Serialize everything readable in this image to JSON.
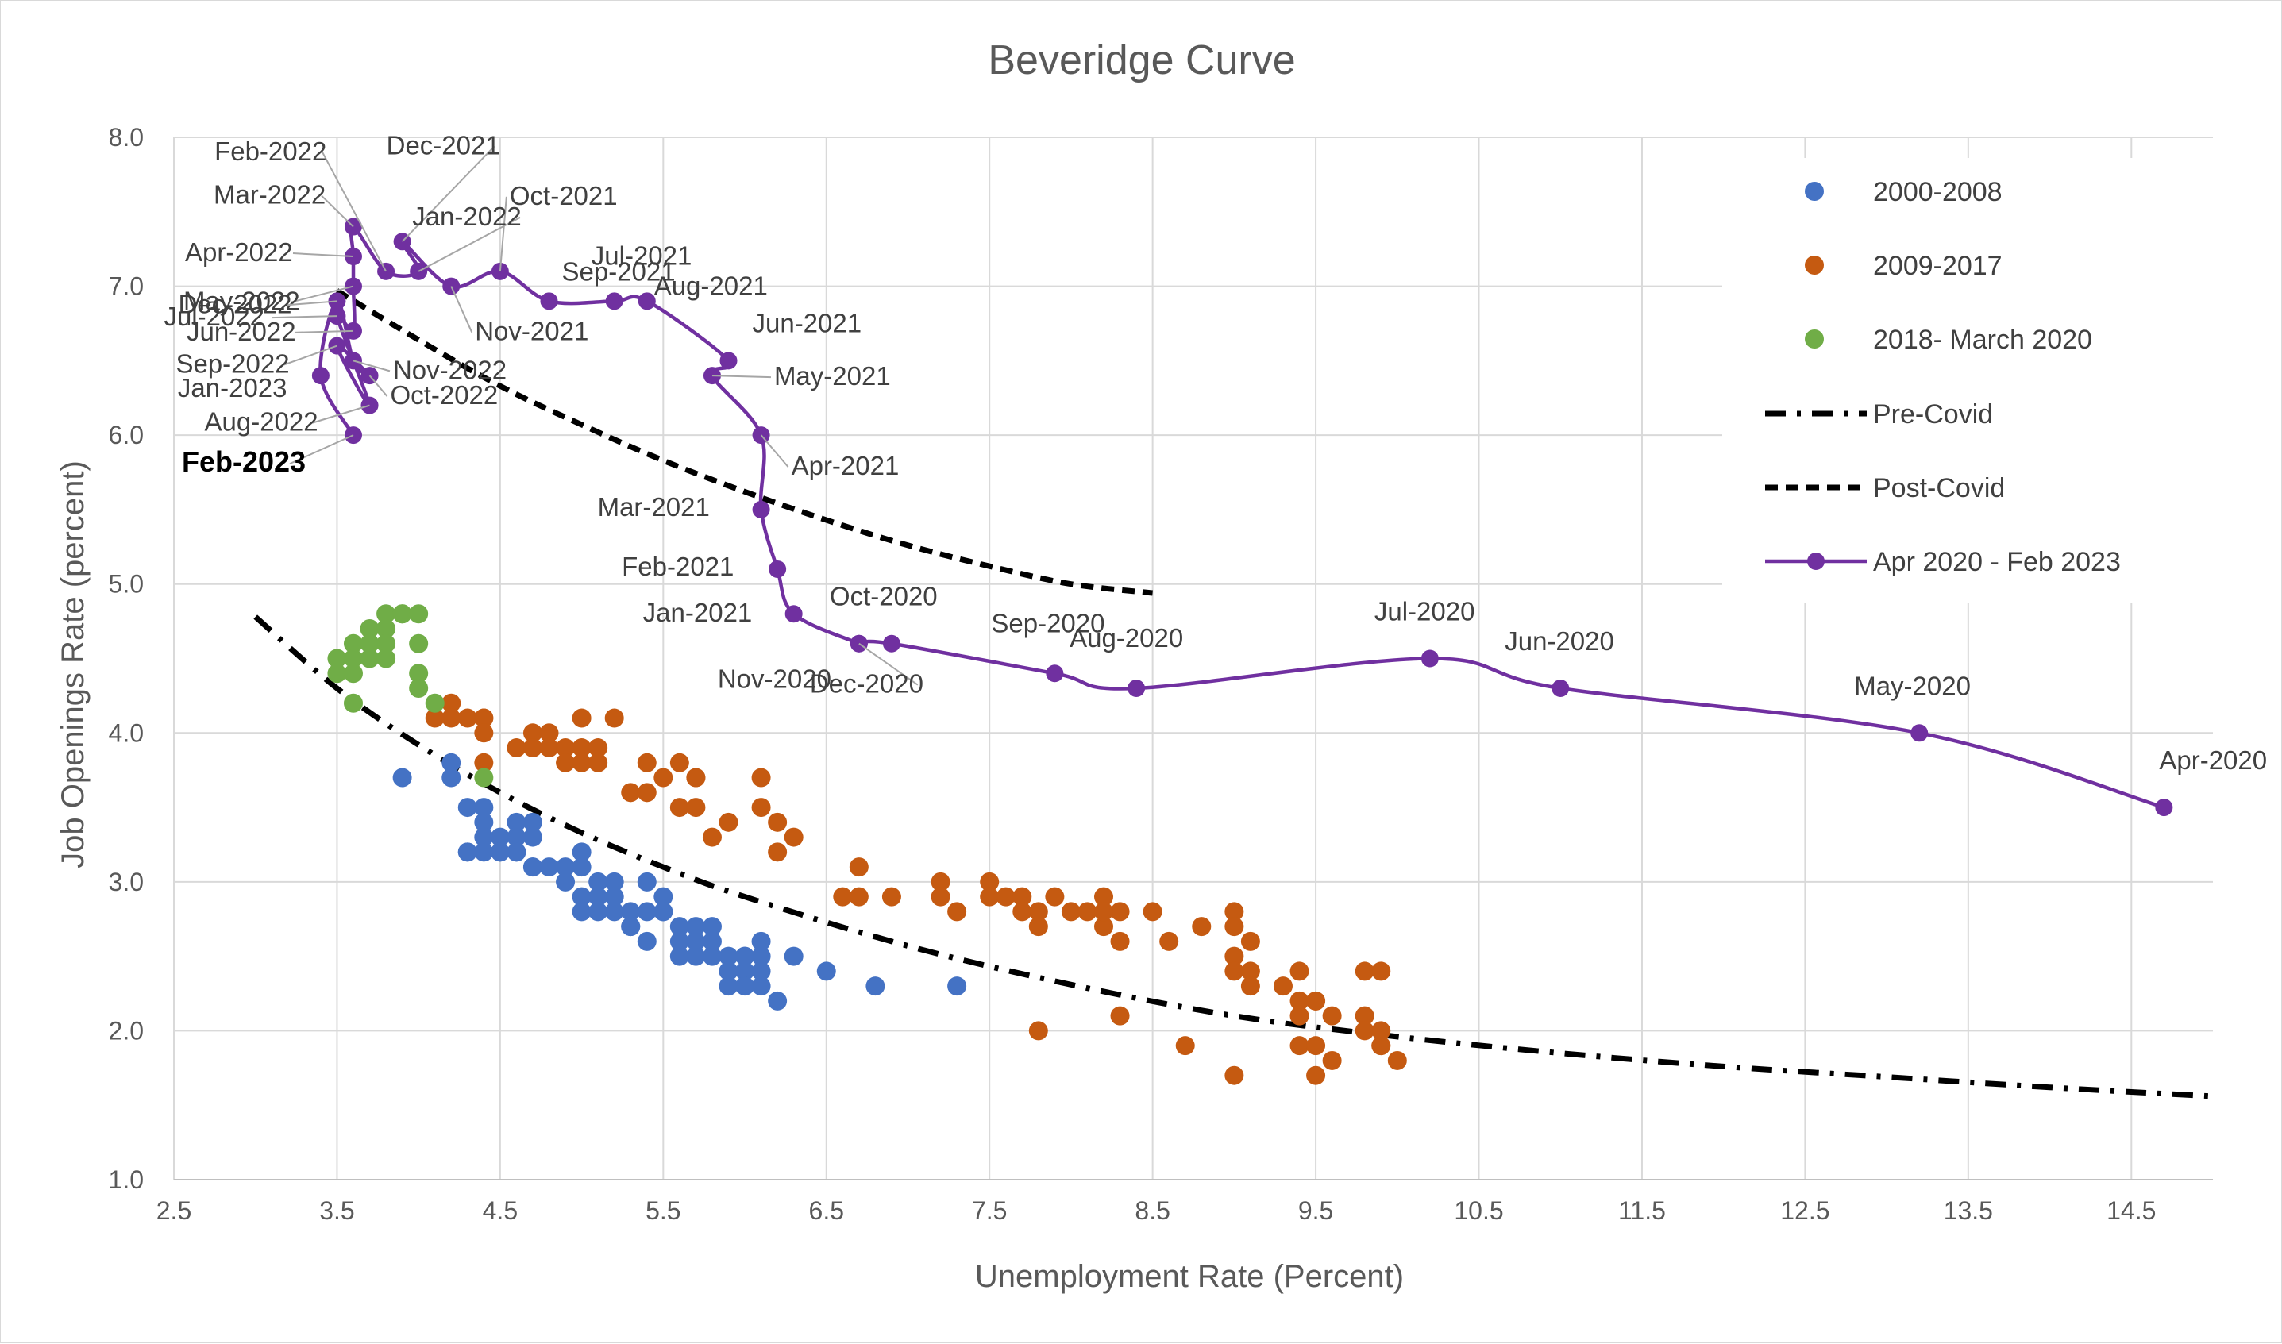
{
  "chart_data": {
    "type": "scatter",
    "title": "Beveridge Curve",
    "xlabel": "Unemployment Rate (Percent)",
    "ylabel": "Job Openings Rate (percent)",
    "xlim": [
      2.5,
      15.0
    ],
    "ylim": [
      1.0,
      8.0
    ],
    "xticks": [
      "2.5",
      "3.5",
      "4.5",
      "5.5",
      "6.5",
      "7.5",
      "8.5",
      "9.5",
      "10.5",
      "11.5",
      "12.5",
      "13.5",
      "14.5"
    ],
    "yticks": [
      "1.0",
      "2.0",
      "3.0",
      "4.0",
      "5.0",
      "6.0",
      "7.0",
      "8.0"
    ],
    "grid": true,
    "legend_position": "top-right",
    "legend": [
      "2000-2008",
      "2009-2017",
      "2018- March 2020",
      "Pre-Covid",
      "Post-Covid",
      "Apr 2020 - Feb 2023"
    ],
    "colors": {
      "blue": "#4472c4",
      "orange": "#c55a11",
      "green": "#70ad47",
      "purple": "#7030a0",
      "black": "#000000",
      "grid": "#d9d9d9",
      "leader": "#a6a6a6"
    },
    "series": [
      {
        "name": "2000-2008",
        "type": "scatter",
        "color": "#4472c4",
        "x": [
          3.9,
          4.2,
          4.2,
          4.3,
          4.4,
          4.3,
          4.4,
          4.5,
          4.6,
          4.6,
          4.7,
          4.7,
          4.4,
          4.5,
          4.6,
          4.7,
          4.3,
          4.4,
          4.5,
          4.6,
          4.7,
          4.8,
          4.9,
          5.0,
          5.0,
          5.1,
          5.2,
          4.9,
          5.0,
          5.1,
          5.2,
          5.3,
          5.4,
          5.5,
          5.0,
          5.1,
          5.2,
          5.3,
          5.4,
          5.5,
          5.3,
          5.4,
          5.5,
          5.6,
          5.7,
          5.8,
          5.6,
          5.7,
          5.8,
          5.9,
          6.0,
          6.1,
          5.6,
          5.7,
          5.8,
          5.9,
          6.0,
          6.1,
          5.9,
          6.0,
          6.1,
          5.9,
          6.0,
          6.1,
          6.3,
          6.5,
          6.8,
          7.3,
          6.2
        ],
        "y": [
          3.7,
          3.8,
          3.7,
          3.5,
          3.5,
          3.2,
          3.4,
          3.3,
          3.4,
          3.3,
          3.4,
          3.3,
          3.2,
          3.2,
          3.2,
          3.1,
          3.2,
          3.3,
          3.2,
          3.2,
          3.1,
          3.1,
          3.1,
          3.2,
          3.1,
          3.0,
          3.0,
          3.0,
          2.9,
          2.9,
          2.9,
          2.8,
          3.0,
          2.9,
          2.8,
          2.8,
          2.8,
          2.7,
          2.8,
          2.8,
          2.7,
          2.6,
          2.8,
          2.7,
          2.7,
          2.7,
          2.6,
          2.6,
          2.6,
          2.5,
          2.5,
          2.6,
          2.5,
          2.5,
          2.5,
          2.4,
          2.4,
          2.4,
          2.3,
          2.3,
          2.3,
          2.4,
          2.5,
          2.5,
          2.5,
          2.4,
          2.3,
          2.3,
          2.2
        ]
      },
      {
        "name": "2009-2017",
        "type": "scatter",
        "color": "#c55a11",
        "x": [
          4.1,
          4.2,
          4.3,
          4.4,
          4.2,
          4.4,
          4.4,
          4.6,
          4.7,
          4.8,
          4.8,
          4.7,
          5.0,
          5.2,
          5.0,
          5.1,
          4.9,
          4.9,
          5.0,
          5.1,
          5.3,
          5.4,
          5.4,
          5.5,
          5.6,
          5.7,
          5.6,
          5.7,
          5.8,
          5.9,
          6.1,
          6.2,
          6.1,
          6.2,
          6.3,
          6.7,
          6.7,
          6.6,
          6.9,
          7.2,
          7.2,
          7.3,
          7.5,
          7.5,
          7.6,
          7.7,
          7.7,
          7.8,
          7.9,
          7.8,
          8.0,
          8.1,
          8.2,
          8.2,
          8.3,
          8.2,
          8.3,
          8.5,
          8.6,
          8.8,
          9.0,
          9.0,
          9.1,
          9.1,
          9.0,
          9.0,
          9.1,
          9.3,
          9.4,
          9.4,
          9.5,
          9.4,
          9.5,
          9.6,
          9.8,
          9.9,
          9.8,
          9.9,
          9.8,
          9.9,
          9.4,
          9.5,
          9.6,
          9.9,
          10.0,
          7.8,
          8.3,
          8.7,
          9.0,
          9.5,
          5.7,
          4.4
        ],
        "y": [
          4.1,
          4.2,
          4.1,
          4.1,
          4.1,
          4.1,
          4.0,
          3.9,
          4.0,
          4.0,
          3.9,
          3.9,
          3.9,
          4.1,
          4.1,
          3.9,
          3.9,
          3.8,
          3.8,
          3.8,
          3.6,
          3.6,
          3.8,
          3.7,
          3.8,
          3.7,
          3.5,
          3.5,
          3.3,
          3.4,
          3.5,
          3.4,
          3.7,
          3.2,
          3.3,
          3.1,
          2.9,
          2.9,
          2.9,
          3.0,
          2.9,
          2.8,
          3.0,
          2.9,
          2.9,
          2.9,
          2.8,
          2.8,
          2.9,
          2.7,
          2.8,
          2.8,
          2.9,
          2.7,
          2.8,
          2.8,
          2.6,
          2.8,
          2.6,
          2.7,
          2.8,
          2.7,
          2.6,
          2.4,
          2.5,
          2.4,
          2.3,
          2.3,
          2.4,
          2.1,
          2.2,
          2.2,
          2.2,
          2.1,
          2.4,
          2.4,
          2.1,
          2.0,
          2.0,
          1.9,
          1.9,
          1.9,
          1.8,
          1.9,
          1.8,
          2.0,
          2.1,
          1.9,
          1.7,
          1.7,
          3.7,
          3.8
        ]
      },
      {
        "name": "2018- March 2020",
        "type": "scatter",
        "color": "#70ad47",
        "x": [
          3.5,
          3.5,
          3.6,
          3.6,
          3.6,
          3.7,
          3.7,
          3.7,
          3.8,
          3.8,
          3.8,
          3.8,
          3.9,
          3.9,
          4.0,
          4.0,
          4.0,
          4.0,
          4.1,
          3.6,
          4.4,
          3.7
        ],
        "y": [
          4.5,
          4.4,
          4.6,
          4.5,
          4.4,
          4.7,
          4.6,
          4.5,
          4.8,
          4.7,
          4.6,
          4.5,
          4.8,
          4.8,
          4.8,
          4.6,
          4.4,
          4.3,
          4.2,
          4.2,
          3.7,
          4.6
        ]
      },
      {
        "name": "Pre-Covid",
        "type": "line",
        "style": "dash-dot",
        "color": "#000000",
        "x": [
          3.0,
          3.5,
          4.0,
          4.5,
          5.0,
          5.5,
          6.0,
          7.0,
          8.0,
          9.0,
          10.0,
          11.0,
          12.0,
          13.0,
          14.0,
          15.0
        ],
        "y": [
          4.78,
          4.3,
          3.92,
          3.6,
          3.33,
          3.1,
          2.9,
          2.57,
          2.31,
          2.1,
          1.96,
          1.85,
          1.76,
          1.69,
          1.62,
          1.56
        ]
      },
      {
        "name": "Post-Covid",
        "type": "line",
        "style": "dash",
        "color": "#000000",
        "x": [
          3.5,
          4.0,
          4.5,
          5.0,
          5.5,
          6.0,
          6.5,
          7.0,
          7.5,
          8.0,
          8.5
        ],
        "y": [
          6.97,
          6.64,
          6.33,
          6.07,
          5.83,
          5.62,
          5.43,
          5.26,
          5.12,
          5.0,
          4.94
        ]
      },
      {
        "name": "Apr 2020 - Feb 2023",
        "type": "line",
        "marker": "circle",
        "color": "#7030a0",
        "points": [
          {
            "label": "Apr-2020",
            "x": 14.7,
            "y": 3.5
          },
          {
            "label": "May-2020",
            "x": 13.2,
            "y": 4.0
          },
          {
            "label": "Jun-2020",
            "x": 11.0,
            "y": 4.3
          },
          {
            "label": "Jul-2020",
            "x": 10.2,
            "y": 4.5
          },
          {
            "label": "Aug-2020",
            "x": 8.4,
            "y": 4.3
          },
          {
            "label": "Sep-2020",
            "x": 7.9,
            "y": 4.4
          },
          {
            "label": "Oct-2020",
            "x": 6.9,
            "y": 4.6
          },
          {
            "label": "Nov-2020",
            "x": 6.7,
            "y": 4.6
          },
          {
            "label": "Dec-2020",
            "x": 6.7,
            "y": 4.6
          },
          {
            "label": "Jan-2021",
            "x": 6.3,
            "y": 4.8
          },
          {
            "label": "Feb-2021",
            "x": 6.2,
            "y": 5.1
          },
          {
            "label": "Mar-2021",
            "x": 6.1,
            "y": 5.5
          },
          {
            "label": "Apr-2021",
            "x": 6.1,
            "y": 6.0
          },
          {
            "label": "May-2021",
            "x": 5.8,
            "y": 6.4
          },
          {
            "label": "Jun-2021",
            "x": 5.9,
            "y": 6.5
          },
          {
            "label": "Jul-2021",
            "x": 5.4,
            "y": 6.9
          },
          {
            "label": "Aug-2021",
            "x": 5.2,
            "y": 6.9
          },
          {
            "label": "Sep-2021",
            "x": 4.8,
            "y": 6.9
          },
          {
            "label": "Oct-2021",
            "x": 4.5,
            "y": 7.1
          },
          {
            "label": "Nov-2021",
            "x": 4.2,
            "y": 7.0
          },
          {
            "label": "Dec-2021",
            "x": 3.9,
            "y": 7.3
          },
          {
            "label": "Jan-2022",
            "x": 4.0,
            "y": 7.1
          },
          {
            "label": "Feb-2022",
            "x": 3.8,
            "y": 7.1
          },
          {
            "label": "Mar-2022",
            "x": 3.6,
            "y": 7.4
          },
          {
            "label": "Apr-2022",
            "x": 3.6,
            "y": 7.2
          },
          {
            "label": "May-2022",
            "x": 3.6,
            "y": 7.0
          },
          {
            "label": "Jun-2022",
            "x": 3.6,
            "y": 6.7
          },
          {
            "label": "Jul-2022",
            "x": 3.5,
            "y": 6.8
          },
          {
            "label": "Aug-2022",
            "x": 3.7,
            "y": 6.2
          },
          {
            "label": "Sep-2022",
            "x": 3.5,
            "y": 6.6
          },
          {
            "label": "Oct-2022",
            "x": 3.7,
            "y": 6.4
          },
          {
            "label": "Nov-2022",
            "x": 3.6,
            "y": 6.5
          },
          {
            "label": "Dec-2022",
            "x": 3.5,
            "y": 6.9
          },
          {
            "label": "Jan-2023",
            "x": 3.4,
            "y": 6.4
          },
          {
            "label": "Feb-2023",
            "x": 3.6,
            "y": 6.0
          }
        ]
      }
    ]
  }
}
